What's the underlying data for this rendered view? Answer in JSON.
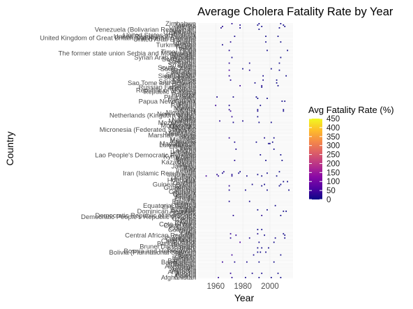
{
  "chart_data": {
    "type": "heatmap",
    "title": "Average Cholera Fatality Rate by Year",
    "xlabel": "Year",
    "ylabel": "Country",
    "x_ticks": [
      1960,
      1980,
      2000
    ],
    "xlim": [
      1947,
      2017
    ],
    "color_scale": {
      "title": "Avg Fatality Rate (%)",
      "range": [
        0,
        450
      ],
      "ticks": [
        450,
        400,
        350,
        300,
        250,
        200,
        150,
        100,
        50,
        0
      ],
      "palette": [
        "#0d0887",
        "#5302a3",
        "#8b0aa5",
        "#b83289",
        "#db5c68",
        "#f48849",
        "#febd2a",
        "#f0f921"
      ]
    },
    "countries": [
      "Afghanistan",
      "Albania",
      "Algeria",
      "Angola",
      "Argentina",
      "Armenia",
      "Australia",
      "Austria",
      "Azerbaijan",
      "Bahamas",
      "Bahrain",
      "Bangladesh",
      "Barbados",
      "Belarus",
      "Belgium",
      "Belize",
      "Benin",
      "Bhutan",
      "Bolivia (Plurinational State of)",
      "Bosnia and Herzegovina",
      "Botswana",
      "Brazil",
      "Brunei Darussalam",
      "Bulgaria",
      "Burkina Faso",
      "Burundi",
      "Cabo Verde",
      "Cambodia",
      "Cameroon",
      "Canada",
      "Central African Republic",
      "Chad",
      "Chile",
      "China",
      "Colombia",
      "Comoros",
      "Congo",
      "Costa Rica",
      "Cote d'Ivoire",
      "Croatia",
      "Cuba",
      "Cyprus",
      "Czechia",
      "Democratic People's Republic of Korea",
      "Democratic Republic of the Congo",
      "Denmark",
      "Djibouti",
      "Dominican Republic",
      "Ecuador",
      "Egypt",
      "El Salvador",
      "Equatorial Guinea",
      "Eritrea",
      "Estonia",
      "Ethiopia",
      "Fiji",
      "Finland",
      "France",
      "Gabon",
      "Gambia",
      "Georgia",
      "Germany",
      "Ghana",
      "Greece",
      "Guatemala",
      "Guinea",
      "Guinea-Bissau",
      "Guyana",
      "Haiti",
      "Honduras",
      "Hungary",
      "Iceland",
      "India",
      "Indonesia",
      "Iran (Islamic Republic of)",
      "Iraq",
      "Ireland",
      "Israel",
      "Italy",
      "Jamaica",
      "Japan",
      "Jordan",
      "Kazakhstan",
      "Kenya",
      "Kiribati",
      "Kuwait",
      "Kyrgyzstan",
      "Lao People's Democratic Republic",
      "Latvia",
      "Lebanon",
      "Lesotho",
      "Liberia",
      "Libya",
      "Lithuania",
      "Luxembourg",
      "Madagascar",
      "Malawi",
      "Malaysia",
      "Maldives",
      "Mali",
      "Malta",
      "Marshall Islands",
      "Mauritania",
      "Mauritius",
      "Mexico",
      "Micronesia (Federated States of)",
      "Monaco",
      "Mongolia",
      "Montenegro",
      "Morocco",
      "Mozambique",
      "Myanmar",
      "Namibia",
      "Nauru",
      "Nepal",
      "Netherlands (Kingdom of the)",
      "New Zealand",
      "Nicaragua",
      "Niger",
      "Nigeria",
      "Norway",
      "Oman",
      "Pakistan",
      "Palau",
      "Panama",
      "Papua New Guinea",
      "Paraguay",
      "Peru",
      "Philippines",
      "Poland",
      "Portugal",
      "Qatar",
      "Republic of Korea",
      "Republic of Moldova",
      "Romania",
      "Russian Federation",
      "Rwanda",
      "Samoa",
      "Sao Tome and Principe",
      "Saudi Arabia",
      "Senegal",
      "Serbia",
      "Seychelles",
      "Sierra Leone",
      "Singapore",
      "Slovakia",
      "Slovenia",
      "Somalia",
      "South Africa",
      "South Sudan",
      "Spain",
      "Sri Lanka",
      "Sudan",
      "Suriname",
      "Sweden",
      "Switzerland",
      "Syrian Arab Republic",
      "Tajikistan",
      "Thailand",
      "The former state union Serbia and Montenegro",
      "Timor-Leste",
      "Togo",
      "Tonga",
      "Tunisia",
      "Turkiye",
      "Turkmenistan",
      "Tuvalu",
      "Uganda",
      "Ukraine",
      "United Arab Emirates",
      "United Kingdom of Great Britain and Northern Ireland",
      "United Republic of Tanzania",
      "United States of America",
      "Uruguay",
      "Uzbekistan",
      "Vanuatu",
      "Venezuela (Bolivarian Republic of)",
      "Viet Nam",
      "Yemen",
      "Zambia",
      "Zimbabwe"
    ],
    "values": [
      {
        "country": "Afghanistan",
        "year": 1962,
        "rate": 30
      },
      {
        "country": "Afghanistan",
        "year": 1972,
        "rate": 25
      },
      {
        "country": "Afghanistan",
        "year": 1982,
        "rate": 8
      },
      {
        "country": "Afghanistan",
        "year": 1992,
        "rate": 5
      },
      {
        "country": "Afghanistan",
        "year": 2001,
        "rate": 2
      },
      {
        "country": "Afghanistan",
        "year": 2008,
        "rate": 1
      },
      {
        "country": "Angola",
        "year": 1971,
        "rate": 35
      },
      {
        "country": "Angola",
        "year": 1987,
        "rate": 12
      },
      {
        "country": "Angola",
        "year": 1994,
        "rate": 6
      },
      {
        "country": "Angola",
        "year": 2006,
        "rate": 4
      },
      {
        "country": "Bangladesh",
        "year": 1965,
        "rate": 40
      },
      {
        "country": "Bangladesh",
        "year": 1974,
        "rate": 15
      },
      {
        "country": "Bangladesh",
        "year": 1983,
        "rate": 9
      },
      {
        "country": "Bangladesh",
        "year": 1992,
        "rate": 3
      },
      {
        "country": "Bangladesh",
        "year": 2003,
        "rate": 1
      },
      {
        "country": "Benin",
        "year": 1972,
        "rate": 45
      },
      {
        "country": "Benin",
        "year": 1988,
        "rate": 10
      },
      {
        "country": "Benin",
        "year": 2008,
        "rate": 3
      },
      {
        "country": "Bolivia (Plurinational State of)",
        "year": 1991,
        "rate": 2
      },
      {
        "country": "Bolivia (Plurinational State of)",
        "year": 1993,
        "rate": 1
      },
      {
        "country": "Bolivia (Plurinational State of)",
        "year": 1997,
        "rate": 5
      },
      {
        "country": "Brazil",
        "year": 1991,
        "rate": 2
      },
      {
        "country": "Brazil",
        "year": 1994,
        "rate": 1
      },
      {
        "country": "Brazil",
        "year": 1999,
        "rate": 3
      },
      {
        "country": "Burundi",
        "year": 1978,
        "rate": 60
      },
      {
        "country": "Burundi",
        "year": 1992,
        "rate": 8
      },
      {
        "country": "Burundi",
        "year": 2003,
        "rate": 2
      },
      {
        "country": "Cameroon",
        "year": 1971,
        "rate": 25
      },
      {
        "country": "Cameroon",
        "year": 1985,
        "rate": 18
      },
      {
        "country": "Cameroon",
        "year": 2004,
        "rate": 5
      },
      {
        "country": "Cameroon",
        "year": 2011,
        "rate": 3
      },
      {
        "country": "Central African Republic",
        "year": 1975,
        "rate": 30
      },
      {
        "country": "Central African Republic",
        "year": 1996,
        "rate": 7
      },
      {
        "country": "Central African Republic",
        "year": 2011,
        "rate": 4
      },
      {
        "country": "Chad",
        "year": 1971,
        "rate": 40
      },
      {
        "country": "Chad",
        "year": 1991,
        "rate": 12
      },
      {
        "country": "Chad",
        "year": 2010,
        "rate": 4
      },
      {
        "country": "Colombia",
        "year": 1991,
        "rate": 1
      },
      {
        "country": "Colombia",
        "year": 1994,
        "rate": 2
      },
      {
        "country": "Democratic Republic of the Congo",
        "year": 1973,
        "rate": 20
      },
      {
        "country": "Democratic Republic of the Congo",
        "year": 1994,
        "rate": 25
      },
      {
        "country": "Democratic Republic of the Congo",
        "year": 2008,
        "rate": 2
      },
      {
        "country": "Dominican Republic",
        "year": 2010,
        "rate": 1
      },
      {
        "country": "Dominican Republic",
        "year": 2012,
        "rate": 1
      },
      {
        "country": "Ecuador",
        "year": 1991,
        "rate": 1
      },
      {
        "country": "Ecuador",
        "year": 1998,
        "rate": 2
      },
      {
        "country": "Equatorial Guinea",
        "year": 2004,
        "rate": 3
      },
      {
        "country": "Ethiopia",
        "year": 1970,
        "rate": 15
      },
      {
        "country": "Ethiopia",
        "year": 1985,
        "rate": 10
      },
      {
        "country": "Ghana",
        "year": 1970,
        "rate": 12
      },
      {
        "country": "Ghana",
        "year": 1982,
        "rate": 6
      },
      {
        "country": "Ghana",
        "year": 1998,
        "rate": 2
      },
      {
        "country": "Ghana",
        "year": 2014,
        "rate": 1
      },
      {
        "country": "Guinea",
        "year": 1970,
        "rate": 30
      },
      {
        "country": "Guinea",
        "year": 1994,
        "rate": 4
      },
      {
        "country": "Guinea",
        "year": 2007,
        "rate": 3
      },
      {
        "country": "Guinea-Bissau",
        "year": 1987,
        "rate": 8
      },
      {
        "country": "Guinea-Bissau",
        "year": 1996,
        "rate": 3
      },
      {
        "country": "Guinea-Bissau",
        "year": 2008,
        "rate": 2
      },
      {
        "country": "Haiti",
        "year": 2010,
        "rate": 2
      },
      {
        "country": "Haiti",
        "year": 2013,
        "rate": 1
      },
      {
        "country": "India",
        "year": 1953,
        "rate": 50
      },
      {
        "country": "India",
        "year": 1962,
        "rate": 30
      },
      {
        "country": "India",
        "year": 1972,
        "rate": 20
      },
      {
        "country": "India",
        "year": 1983,
        "rate": 8
      },
      {
        "country": "India",
        "year": 1994,
        "rate": 2
      },
      {
        "country": "India",
        "year": 2005,
        "rate": 1
      },
      {
        "country": "Indonesia",
        "year": 1961,
        "rate": 25
      },
      {
        "country": "Indonesia",
        "year": 1972,
        "rate": 15
      },
      {
        "country": "Indonesia",
        "year": 1991,
        "rate": 4
      },
      {
        "country": "Iran (Islamic Republic of)",
        "year": 1965,
        "rate": 10
      },
      {
        "country": "Iran (Islamic Republic of)",
        "year": 1977,
        "rate": 4
      },
      {
        "country": "Iran (Islamic Republic of)",
        "year": 1998,
        "rate": 2
      },
      {
        "country": "Iraq",
        "year": 1966,
        "rate": 20
      },
      {
        "country": "Iraq",
        "year": 1978,
        "rate": 5
      },
      {
        "country": "Iraq",
        "year": 2007,
        "rate": 1
      },
      {
        "country": "Kenya",
        "year": 1974,
        "rate": 20
      },
      {
        "country": "Kenya",
        "year": 1997,
        "rate": 3
      },
      {
        "country": "Kenya",
        "year": 2009,
        "rate": 2
      },
      {
        "country": "Lao People's Democratic Republic",
        "year": 1993,
        "rate": 6
      },
      {
        "country": "Lao People's Democratic Republic",
        "year": 2008,
        "rate": 2
      },
      {
        "country": "Liberia",
        "year": 1975,
        "rate": 12
      },
      {
        "country": "Liberia",
        "year": 2003,
        "rate": 2
      },
      {
        "country": "Madagascar",
        "year": 1999,
        "rate": 5
      },
      {
        "country": "Madagascar",
        "year": 2000,
        "rate": 8
      },
      {
        "country": "Malawi",
        "year": 1974,
        "rate": 15
      },
      {
        "country": "Malawi",
        "year": 1990,
        "rate": 4
      },
      {
        "country": "Malawi",
        "year": 2002,
        "rate": 3
      },
      {
        "country": "Mali",
        "year": 1970,
        "rate": 35
      },
      {
        "country": "Mali",
        "year": 1996,
        "rate": 10
      },
      {
        "country": "Mali",
        "year": 2003,
        "rate": 4
      },
      {
        "country": "Mozambique",
        "year": 1973,
        "rate": 10
      },
      {
        "country": "Mozambique",
        "year": 1992,
        "rate": 4
      },
      {
        "country": "Mozambique",
        "year": 2001,
        "rate": 2
      },
      {
        "country": "Myanmar",
        "year": 1963,
        "rate": 25
      },
      {
        "country": "Myanmar",
        "year": 1980,
        "rate": 10
      },
      {
        "country": "Nepal",
        "year": 1972,
        "rate": 30
      },
      {
        "country": "Nepal",
        "year": 1991,
        "rate": 3
      },
      {
        "country": "Niger",
        "year": 1971,
        "rate": 40
      },
      {
        "country": "Niger",
        "year": 1991,
        "rate": 12
      },
      {
        "country": "Niger",
        "year": 2010,
        "rate": 6
      },
      {
        "country": "Nigeria",
        "year": 1970,
        "rate": 25
      },
      {
        "country": "Nigeria",
        "year": 1991,
        "rate": 10
      },
      {
        "country": "Nigeria",
        "year": 2010,
        "rate": 4
      },
      {
        "country": "Pakistan",
        "year": 1960,
        "rate": 40
      },
      {
        "country": "Pakistan",
        "year": 1970,
        "rate": 15
      },
      {
        "country": "Pakistan",
        "year": 1993,
        "rate": 5
      },
      {
        "country": "Papua New Guinea",
        "year": 2009,
        "rate": 3
      },
      {
        "country": "Papua New Guinea",
        "year": 2011,
        "rate": 2
      },
      {
        "country": "Peru",
        "year": 1991,
        "rate": 1
      },
      {
        "country": "Peru",
        "year": 1998,
        "rate": 1
      },
      {
        "country": "Philippines",
        "year": 1961,
        "rate": 15
      },
      {
        "country": "Philippines",
        "year": 1973,
        "rate": 8
      },
      {
        "country": "Philippines",
        "year": 1990,
        "rate": 3
      },
      {
        "country": "Russian Federation",
        "year": 1994,
        "rate": 1
      },
      {
        "country": "Rwanda",
        "year": 1978,
        "rate": 40
      },
      {
        "country": "Rwanda",
        "year": 1994,
        "rate": 20
      },
      {
        "country": "Rwanda",
        "year": 2006,
        "rate": 2
      },
      {
        "country": "Sao Tome and Principe",
        "year": 1989,
        "rate": 5
      },
      {
        "country": "Sao Tome and Principe",
        "year": 2005,
        "rate": 1
      },
      {
        "country": "Senegal",
        "year": 1971,
        "rate": 20
      },
      {
        "country": "Senegal",
        "year": 1995,
        "rate": 6
      },
      {
        "country": "Senegal",
        "year": 2005,
        "rate": 1
      },
      {
        "country": "Sierra Leone",
        "year": 1970,
        "rate": 30
      },
      {
        "country": "Sierra Leone",
        "year": 1995,
        "rate": 8
      },
      {
        "country": "Sierra Leone",
        "year": 2012,
        "rate": 1
      },
      {
        "country": "Somalia",
        "year": 1970,
        "rate": 60
      },
      {
        "country": "Somalia",
        "year": 1985,
        "rate": 25
      },
      {
        "country": "Somalia",
        "year": 2007,
        "rate": 3
      },
      {
        "country": "South Africa",
        "year": 1980,
        "rate": 2
      },
      {
        "country": "South Africa",
        "year": 2001,
        "rate": 1
      },
      {
        "country": "Sudan",
        "year": 1970,
        "rate": 30
      },
      {
        "country": "Sudan",
        "year": 1985,
        "rate": 15
      },
      {
        "country": "Sudan",
        "year": 2007,
        "rate": 3
      },
      {
        "country": "Syrian Arab Republic",
        "year": 1972,
        "rate": 6
      },
      {
        "country": "Syrian Arab Republic",
        "year": 2008,
        "rate": 1
      },
      {
        "country": "Togo",
        "year": 1970,
        "rate": 20
      },
      {
        "country": "Togo",
        "year": 1998,
        "rate": 5
      },
      {
        "country": "Togo",
        "year": 2013,
        "rate": 2
      },
      {
        "country": "Turkmenistan",
        "year": 1965,
        "rate": 10
      },
      {
        "country": "Uganda",
        "year": 1971,
        "rate": 20
      },
      {
        "country": "Uganda",
        "year": 1997,
        "rate": 5
      },
      {
        "country": "Uganda",
        "year": 2008,
        "rate": 2
      },
      {
        "country": "United Republic of Tanzania",
        "year": 1974,
        "rate": 10
      },
      {
        "country": "United Republic of Tanzania",
        "year": 1997,
        "rate": 3
      },
      {
        "country": "United Republic of Tanzania",
        "year": 2006,
        "rate": 1
      },
      {
        "country": "Venezuela (Bolivarian Republic of)",
        "year": 1992,
        "rate": 2
      },
      {
        "country": "Viet Nam",
        "year": 1964,
        "rate": 15
      },
      {
        "country": "Viet Nam",
        "year": 1978,
        "rate": 8
      },
      {
        "country": "Viet Nam",
        "year": 2007,
        "rate": 1
      },
      {
        "country": "Yemen",
        "year": 1965,
        "rate": 20
      },
      {
        "country": "Yemen",
        "year": 1994,
        "rate": 3
      },
      {
        "country": "Yemen",
        "year": 2011,
        "rate": 1
      },
      {
        "country": "Zambia",
        "year": 1978,
        "rate": 15
      },
      {
        "country": "Zambia",
        "year": 1991,
        "rate": 5
      },
      {
        "country": "Zambia",
        "year": 2010,
        "rate": 2
      },
      {
        "country": "Zimbabwe",
        "year": 1972,
        "rate": 20
      },
      {
        "country": "Zimbabwe",
        "year": 1992,
        "rate": 5
      },
      {
        "country": "Zimbabwe",
        "year": 2008,
        "rate": 4
      }
    ]
  }
}
